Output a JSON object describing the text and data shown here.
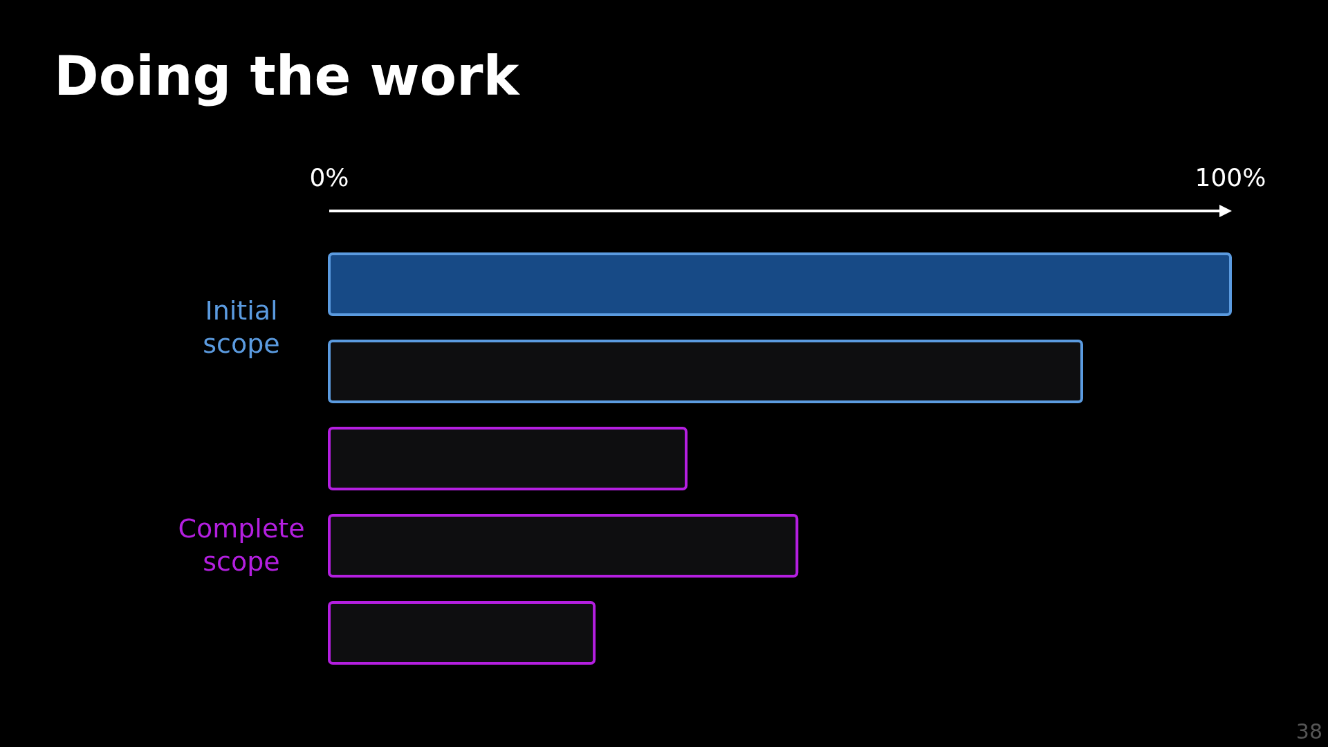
{
  "chart_data": {
    "type": "bar",
    "orientation": "horizontal",
    "title": "Doing the work",
    "categories": [
      null,
      null,
      null,
      null,
      null
    ],
    "xlim": [
      0,
      100
    ],
    "xticks": [
      {
        "value": 0,
        "label": "0%"
      },
      {
        "value": 100,
        "label": "100%"
      }
    ],
    "values": [
      100,
      83.5,
      39.6,
      51.9,
      29.4
    ],
    "colors": [
      "#174a86",
      "#0e0e10",
      "#0e0e10",
      "#0e0e10",
      "#0e0e10"
    ],
    "annotations": [
      "Initial scope",
      "Complete scope",
      "38"
    ]
  }
}
